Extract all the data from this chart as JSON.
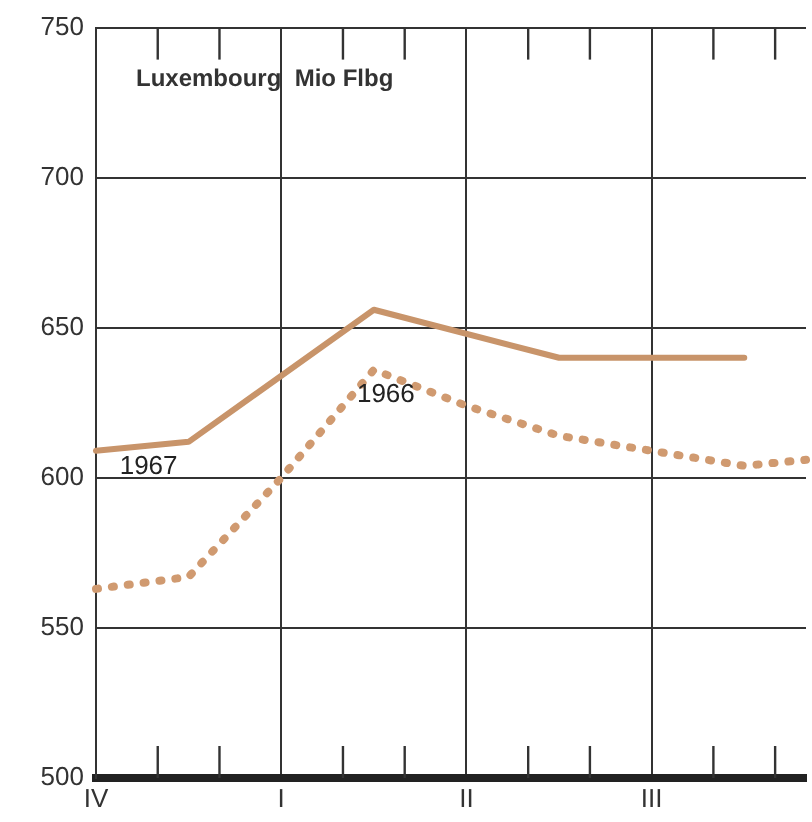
{
  "chart_data": {
    "type": "line",
    "title": "Luxembourg  Mio Flbg",
    "categories": [
      "IV",
      null,
      null,
      null,
      null,
      null,
      "I",
      null,
      null,
      null,
      null,
      null,
      "II",
      null,
      null,
      null,
      null,
      null,
      "III",
      null,
      null,
      null,
      null,
      null
    ],
    "ylim": [
      500,
      750
    ],
    "yticks": [
      500,
      550,
      600,
      650,
      700,
      750
    ],
    "series": [
      {
        "name": "1967",
        "color": "#c8946a",
        "line_style": "solid",
        "values": [
          609,
          null,
          null,
          612,
          null,
          null,
          null,
          null,
          null,
          656,
          null,
          null,
          null,
          null,
          null,
          640,
          null,
          null,
          null,
          null,
          null,
          640,
          null,
          null
        ]
      },
      {
        "name": "1966",
        "color": "#d09a70",
        "line_style": "dotted",
        "values": [
          563,
          null,
          null,
          567,
          null,
          null,
          600,
          null,
          null,
          636,
          null,
          null,
          624,
          null,
          null,
          614,
          null,
          null,
          609,
          null,
          null,
          604,
          null,
          606
        ]
      }
    ],
    "grid": true,
    "legend": false,
    "marker": "none"
  }
}
